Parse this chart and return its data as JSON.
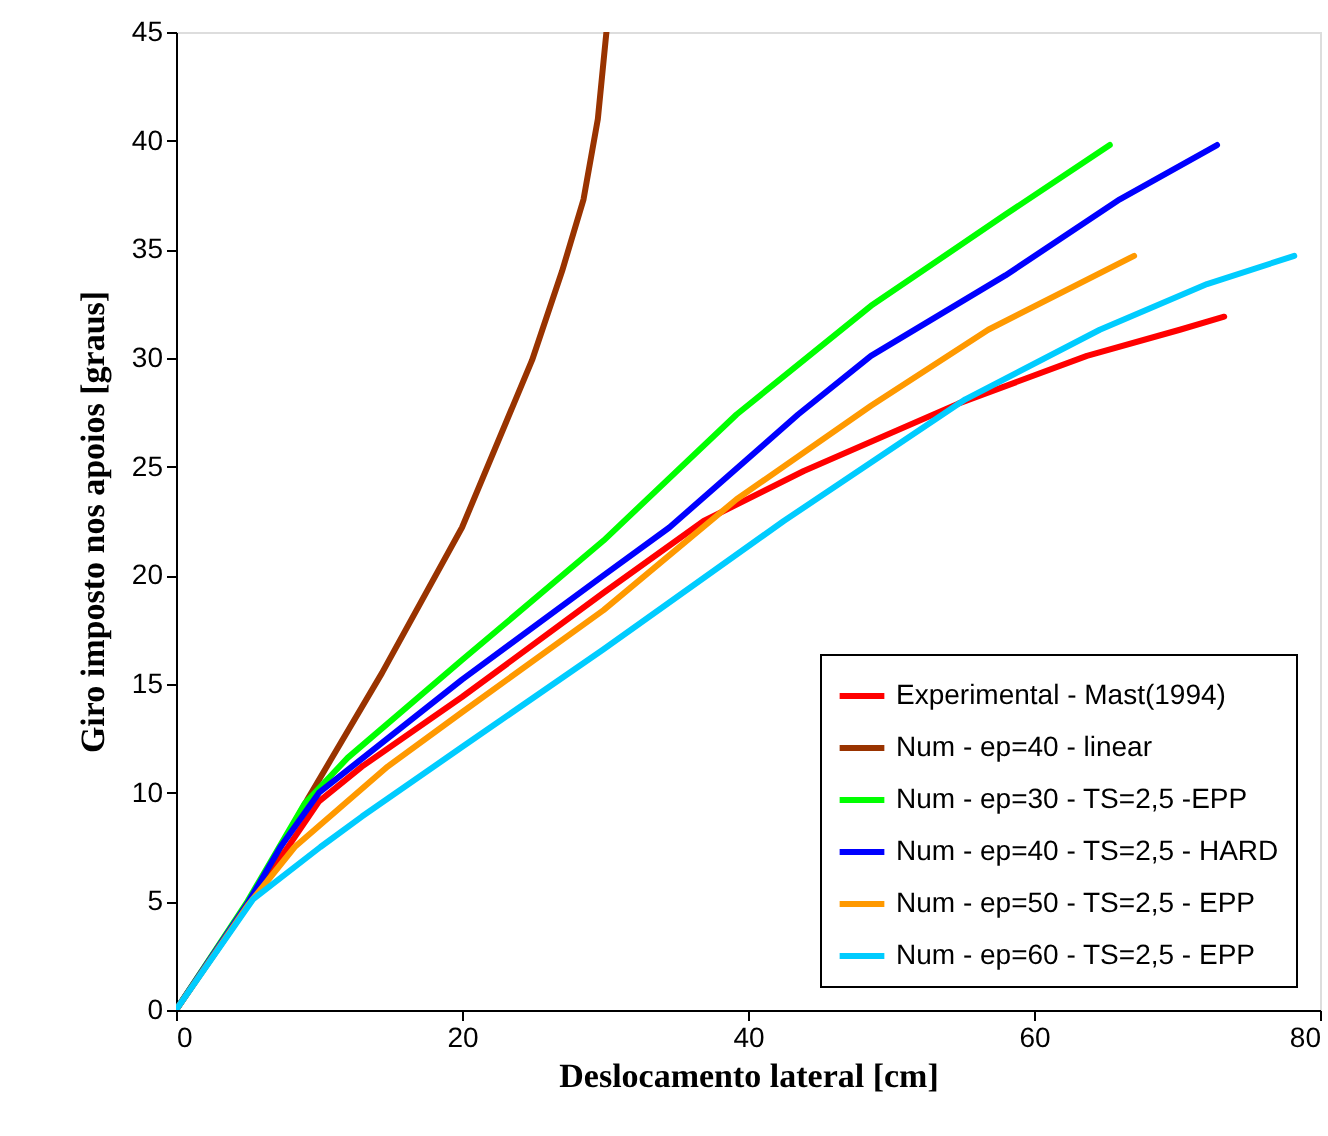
{
  "chart_data": {
    "type": "line",
    "xlabel": "Deslocamento lateral [cm]",
    "ylabel": "Giro imposto nos apoios [graus]",
    "xlim": [
      0,
      80
    ],
    "xticks": [
      0,
      20,
      40,
      60,
      80
    ],
    "ylim": [
      0,
      45
    ],
    "yticks": [
      0,
      5,
      10,
      15,
      20,
      25,
      30,
      35,
      40,
      45
    ],
    "grid": false,
    "legend": "bottom right",
    "marker": "none",
    "line_style": "solid",
    "series": [
      {
        "name": "Experimental - Mast(1994)",
        "color": "#ff0000",
        "x": [
          0,
          5,
          6.9,
          10,
          13,
          20,
          29.9,
          36.9,
          43.9,
          54.7,
          63.7,
          70.2,
          73.3
        ],
        "values": [
          0,
          4.9,
          6.6,
          9.6,
          11.2,
          14.4,
          19.2,
          22.5,
          24.8,
          27.9,
          30.1,
          31.3,
          31.9
        ]
      },
      {
        "name": "Num - ep=40 - linear",
        "color": "#993300",
        "x": [
          0,
          5,
          9.2,
          14.4,
          20,
          24.9,
          27,
          28.5,
          29.5,
          30.1
        ],
        "values": [
          0,
          4.8,
          9.7,
          15.5,
          22.2,
          29.9,
          34,
          37.3,
          41,
          45
        ]
      },
      {
        "name": "Num - ep=30 - TS=2,5 -EPP",
        "color": "#00ff00",
        "x": [
          0,
          5,
          9,
          12,
          20,
          29.9,
          39.2,
          48.6,
          58,
          65.3
        ],
        "values": [
          0,
          5,
          9.5,
          11.6,
          16.1,
          21.6,
          27.4,
          32.4,
          36.6,
          39.8
        ]
      },
      {
        "name": "Num - ep=40 - TS=2,5 - HARD",
        "color": "#0000ff",
        "x": [
          0,
          5,
          7.3,
          10,
          12.5,
          20,
          29.9,
          34.5,
          43.5,
          48.6,
          58,
          66,
          72.8
        ],
        "values": [
          0,
          4.9,
          7.5,
          10,
          11.3,
          15.2,
          20,
          22.2,
          27.4,
          30.1,
          33.8,
          37.3,
          39.8
        ]
      },
      {
        "name": "Num - ep=50 - TS=2,5 - EPP",
        "color": "#ff9900",
        "x": [
          0,
          5,
          8.3,
          14.8,
          20,
          29.9,
          39.2,
          48.6,
          56.8,
          67
        ],
        "values": [
          0,
          4.8,
          7.5,
          11.2,
          13.7,
          18.4,
          23.5,
          27.8,
          31.3,
          34.7
        ]
      },
      {
        "name": "Num - ep=60 - TS=2,5 - EPP",
        "color": "#00ccff",
        "x": [
          0,
          5.4,
          10.1,
          13,
          20,
          29.9,
          42.5,
          55.2,
          64.6,
          72.1,
          78.2
        ],
        "values": [
          0,
          5.1,
          7.5,
          8.9,
          12.1,
          16.6,
          22.5,
          28.1,
          31.3,
          33.4,
          34.7
        ]
      }
    ]
  }
}
